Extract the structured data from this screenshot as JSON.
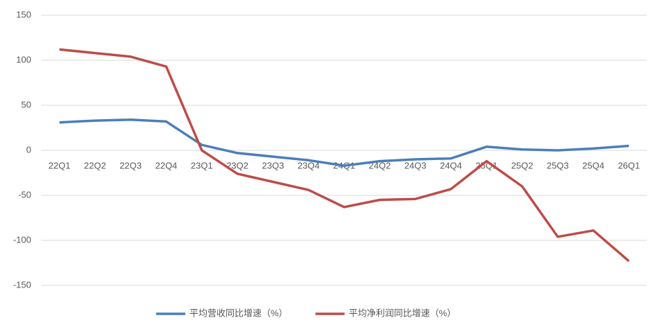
{
  "chart_data": {
    "type": "line",
    "categories": [
      "22Q1",
      "22Q2",
      "22Q3",
      "22Q4",
      "23Q1",
      "23Q2",
      "23Q3",
      "23Q4",
      "24Q1",
      "24Q2",
      "24Q3",
      "24Q4",
      "25Q1",
      "25Q2",
      "25Q3",
      "25Q4",
      "26Q1"
    ],
    "series": [
      {
        "name": "平均营收同比增速（%）",
        "color": "#4a7ebb",
        "values": [
          31,
          33,
          34,
          32,
          6,
          -3,
          -7,
          -11,
          -17,
          -12,
          -10,
          -9,
          4,
          1,
          0,
          2,
          5
        ]
      },
      {
        "name": "平均净利润同比增速（%）",
        "color": "#be4b48",
        "values": [
          112,
          108,
          104,
          93,
          0,
          -26,
          -35,
          -44,
          -63,
          -55,
          -54,
          -43,
          -12,
          -40,
          -96,
          -89,
          -123
        ]
      }
    ],
    "ylim": [
      -150,
      150
    ],
    "yticks": [
      -150,
      -100,
      -50,
      0,
      50,
      100,
      150
    ],
    "grid": true,
    "legend": "bottom"
  }
}
